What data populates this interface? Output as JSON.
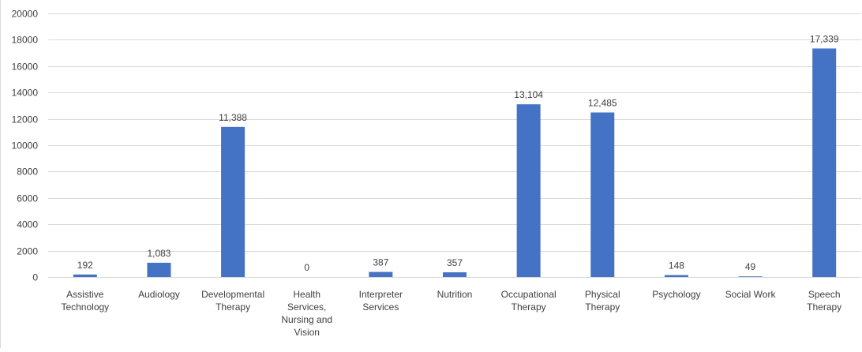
{
  "chart_data": {
    "type": "bar",
    "categories": [
      [
        "Assistive",
        "Technology"
      ],
      [
        "Audiology"
      ],
      [
        "Developmental",
        "Therapy"
      ],
      [
        "Health",
        "Services,",
        "Nursing and",
        "Vision"
      ],
      [
        "Interpreter",
        "Services"
      ],
      [
        "Nutrition"
      ],
      [
        "Occupational",
        "Therapy"
      ],
      [
        "Physical",
        "Therapy"
      ],
      [
        "Psychology"
      ],
      [
        "Social Work"
      ],
      [
        "Speech",
        "Therapy"
      ]
    ],
    "values": [
      192,
      1083,
      11388,
      0,
      387,
      357,
      13104,
      12485,
      148,
      49,
      17339
    ],
    "data_labels": [
      "192",
      "1,083",
      "11,388",
      "0",
      "387",
      "357",
      "13,104",
      "12,485",
      "148",
      "49",
      "17,339"
    ],
    "ylim": [
      0,
      20000
    ],
    "yticks": [
      0,
      2000,
      4000,
      6000,
      8000,
      10000,
      12000,
      14000,
      16000,
      18000,
      20000
    ],
    "grid": true,
    "legend": "none",
    "title": "",
    "xlabel": "",
    "ylabel": "",
    "bar_color": "#4472c4",
    "grid_color": "#d9d9d9",
    "text_color": "#404040"
  }
}
